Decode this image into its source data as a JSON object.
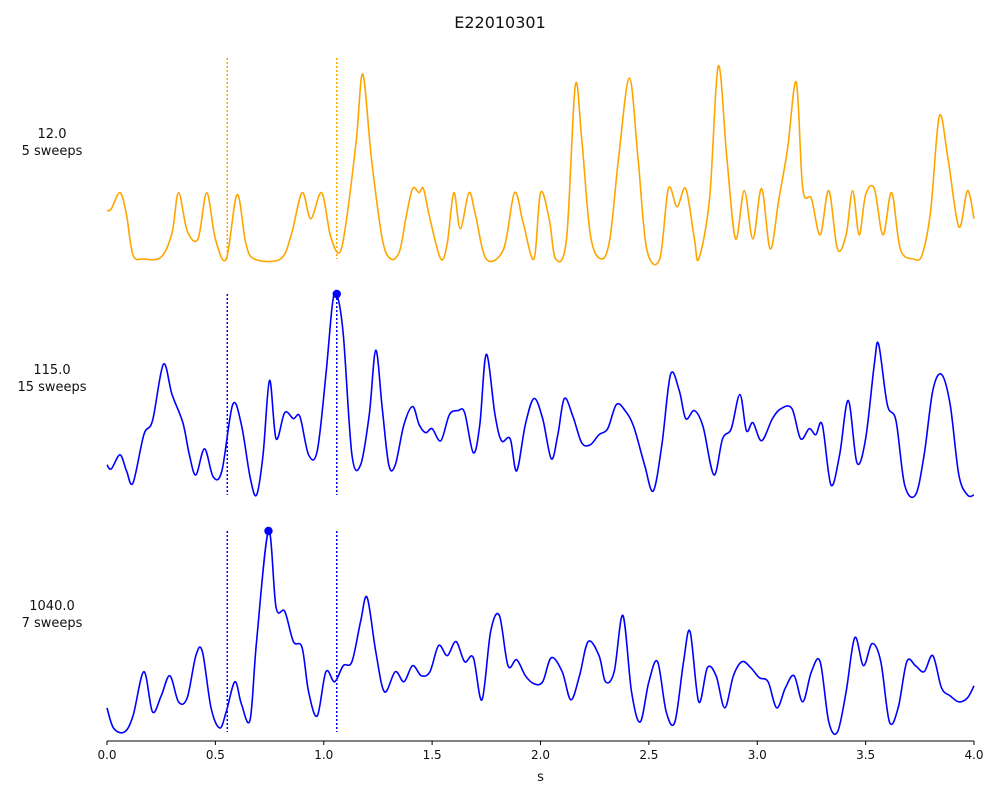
{
  "chart_data": {
    "type": "line",
    "title": "E22010301",
    "xlabel": "s",
    "xlim": [
      0.0,
      4.0
    ],
    "x_ticks": [
      "0.0",
      "0.5",
      "1.0",
      "1.5",
      "2.0",
      "2.5",
      "3.0",
      "3.5",
      "4.0"
    ],
    "markers": [
      0.555,
      1.06
    ],
    "colors": {
      "row1": "#ffa500",
      "row2": "#0000ff",
      "row3": "#0000ff"
    },
    "rows": [
      {
        "label_line1": "12.0",
        "label_line2": "5 sweeps",
        "color": "#ffa500",
        "peak": null,
        "points": [
          [
            0.0,
            0.24
          ],
          [
            0.02,
            0.25
          ],
          [
            0.06,
            0.33
          ],
          [
            0.09,
            0.22
          ],
          [
            0.12,
            0.02
          ],
          [
            0.17,
            0.0
          ],
          [
            0.25,
            0.01
          ],
          [
            0.3,
            0.13
          ],
          [
            0.33,
            0.33
          ],
          [
            0.37,
            0.14
          ],
          [
            0.42,
            0.1
          ],
          [
            0.46,
            0.33
          ],
          [
            0.5,
            0.1
          ],
          [
            0.55,
            0.0
          ],
          [
            0.6,
            0.32
          ],
          [
            0.64,
            0.08
          ],
          [
            0.68,
            0.0
          ],
          [
            0.8,
            0.0
          ],
          [
            0.85,
            0.12
          ],
          [
            0.9,
            0.33
          ],
          [
            0.94,
            0.2
          ],
          [
            0.99,
            0.33
          ],
          [
            1.03,
            0.12
          ],
          [
            1.07,
            0.03
          ],
          [
            1.1,
            0.16
          ],
          [
            1.15,
            0.59
          ],
          [
            1.18,
            0.92
          ],
          [
            1.22,
            0.5
          ],
          [
            1.27,
            0.1
          ],
          [
            1.31,
            0.0
          ],
          [
            1.35,
            0.04
          ],
          [
            1.38,
            0.21
          ],
          [
            1.41,
            0.35
          ],
          [
            1.44,
            0.33
          ],
          [
            1.46,
            0.35
          ],
          [
            1.49,
            0.2
          ],
          [
            1.54,
            0.0
          ],
          [
            1.57,
            0.08
          ],
          [
            1.6,
            0.33
          ],
          [
            1.63,
            0.15
          ],
          [
            1.67,
            0.33
          ],
          [
            1.7,
            0.22
          ],
          [
            1.75,
            0.0
          ],
          [
            1.83,
            0.05
          ],
          [
            1.88,
            0.33
          ],
          [
            1.92,
            0.18
          ],
          [
            1.97,
            0.0
          ],
          [
            2.0,
            0.33
          ],
          [
            2.04,
            0.2
          ],
          [
            2.07,
            0.0
          ],
          [
            2.12,
            0.1
          ],
          [
            2.16,
            0.86
          ],
          [
            2.19,
            0.6
          ],
          [
            2.23,
            0.12
          ],
          [
            2.28,
            0.0
          ],
          [
            2.32,
            0.1
          ],
          [
            2.36,
            0.5
          ],
          [
            2.41,
            0.9
          ],
          [
            2.45,
            0.5
          ],
          [
            2.49,
            0.05
          ],
          [
            2.55,
            0.0
          ],
          [
            2.59,
            0.35
          ],
          [
            2.63,
            0.26
          ],
          [
            2.67,
            0.35
          ],
          [
            2.71,
            0.1
          ],
          [
            2.73,
            0.0
          ],
          [
            2.78,
            0.3
          ],
          [
            2.82,
            0.96
          ],
          [
            2.86,
            0.5
          ],
          [
            2.9,
            0.1
          ],
          [
            2.94,
            0.34
          ],
          [
            2.98,
            0.1
          ],
          [
            3.02,
            0.35
          ],
          [
            3.06,
            0.05
          ],
          [
            3.1,
            0.3
          ],
          [
            3.14,
            0.55
          ],
          [
            3.18,
            0.88
          ],
          [
            3.21,
            0.35
          ],
          [
            3.25,
            0.3
          ],
          [
            3.29,
            0.12
          ],
          [
            3.33,
            0.34
          ],
          [
            3.37,
            0.05
          ],
          [
            3.41,
            0.12
          ],
          [
            3.44,
            0.34
          ],
          [
            3.47,
            0.12
          ],
          [
            3.5,
            0.32
          ],
          [
            3.54,
            0.35
          ],
          [
            3.58,
            0.12
          ],
          [
            3.62,
            0.33
          ],
          [
            3.66,
            0.05
          ],
          [
            3.72,
            0.0
          ],
          [
            3.76,
            0.02
          ],
          [
            3.8,
            0.24
          ],
          [
            3.84,
            0.71
          ],
          [
            3.88,
            0.5
          ],
          [
            3.93,
            0.16
          ],
          [
            3.97,
            0.34
          ],
          [
            4.0,
            0.2
          ]
        ]
      },
      {
        "label_line1": "115.0",
        "label_line2": "15 sweeps",
        "color": "#0000ff",
        "peak": [
          1.06,
          1.0
        ],
        "points": [
          [
            0.0,
            0.15
          ],
          [
            0.02,
            0.13
          ],
          [
            0.06,
            0.2
          ],
          [
            0.09,
            0.12
          ],
          [
            0.12,
            0.06
          ],
          [
            0.17,
            0.3
          ],
          [
            0.21,
            0.37
          ],
          [
            0.26,
            0.65
          ],
          [
            0.3,
            0.5
          ],
          [
            0.35,
            0.36
          ],
          [
            0.38,
            0.2
          ],
          [
            0.41,
            0.1
          ],
          [
            0.45,
            0.23
          ],
          [
            0.49,
            0.09
          ],
          [
            0.53,
            0.12
          ],
          [
            0.58,
            0.45
          ],
          [
            0.62,
            0.35
          ],
          [
            0.66,
            0.09
          ],
          [
            0.69,
            0.0
          ],
          [
            0.72,
            0.2
          ],
          [
            0.75,
            0.57
          ],
          [
            0.78,
            0.28
          ],
          [
            0.82,
            0.41
          ],
          [
            0.86,
            0.38
          ],
          [
            0.89,
            0.39
          ],
          [
            0.93,
            0.2
          ],
          [
            0.97,
            0.22
          ],
          [
            1.01,
            0.6
          ],
          [
            1.04,
            0.95
          ],
          [
            1.06,
            1.0
          ],
          [
            1.09,
            0.8
          ],
          [
            1.13,
            0.2
          ],
          [
            1.17,
            0.15
          ],
          [
            1.21,
            0.4
          ],
          [
            1.24,
            0.72
          ],
          [
            1.27,
            0.43
          ],
          [
            1.3,
            0.15
          ],
          [
            1.33,
            0.15
          ],
          [
            1.37,
            0.35
          ],
          [
            1.41,
            0.44
          ],
          [
            1.44,
            0.35
          ],
          [
            1.47,
            0.31
          ],
          [
            1.5,
            0.33
          ],
          [
            1.54,
            0.27
          ],
          [
            1.58,
            0.4
          ],
          [
            1.62,
            0.42
          ],
          [
            1.65,
            0.41
          ],
          [
            1.69,
            0.21
          ],
          [
            1.72,
            0.35
          ],
          [
            1.75,
            0.7
          ],
          [
            1.79,
            0.4
          ],
          [
            1.82,
            0.27
          ],
          [
            1.86,
            0.28
          ],
          [
            1.89,
            0.12
          ],
          [
            1.93,
            0.35
          ],
          [
            1.97,
            0.48
          ],
          [
            2.01,
            0.38
          ],
          [
            2.05,
            0.18
          ],
          [
            2.08,
            0.3
          ],
          [
            2.11,
            0.48
          ],
          [
            2.15,
            0.39
          ],
          [
            2.19,
            0.26
          ],
          [
            2.23,
            0.25
          ],
          [
            2.27,
            0.3
          ],
          [
            2.31,
            0.33
          ],
          [
            2.35,
            0.45
          ],
          [
            2.39,
            0.42
          ],
          [
            2.43,
            0.34
          ],
          [
            2.48,
            0.15
          ],
          [
            2.52,
            0.02
          ],
          [
            2.56,
            0.25
          ],
          [
            2.6,
            0.6
          ],
          [
            2.64,
            0.52
          ],
          [
            2.67,
            0.38
          ],
          [
            2.71,
            0.42
          ],
          [
            2.75,
            0.34
          ],
          [
            2.8,
            0.1
          ],
          [
            2.84,
            0.28
          ],
          [
            2.88,
            0.33
          ],
          [
            2.92,
            0.5
          ],
          [
            2.95,
            0.32
          ],
          [
            2.98,
            0.36
          ],
          [
            3.02,
            0.27
          ],
          [
            3.07,
            0.38
          ],
          [
            3.11,
            0.43
          ],
          [
            3.16,
            0.43
          ],
          [
            3.2,
            0.28
          ],
          [
            3.24,
            0.33
          ],
          [
            3.27,
            0.3
          ],
          [
            3.3,
            0.35
          ],
          [
            3.34,
            0.05
          ],
          [
            3.38,
            0.2
          ],
          [
            3.42,
            0.47
          ],
          [
            3.46,
            0.16
          ],
          [
            3.5,
            0.28
          ],
          [
            3.54,
            0.65
          ],
          [
            3.56,
            0.75
          ],
          [
            3.6,
            0.45
          ],
          [
            3.64,
            0.37
          ],
          [
            3.68,
            0.05
          ],
          [
            3.73,
            0.0
          ],
          [
            3.77,
            0.2
          ],
          [
            3.81,
            0.52
          ],
          [
            3.85,
            0.6
          ],
          [
            3.89,
            0.45
          ],
          [
            3.93,
            0.1
          ],
          [
            3.97,
            0.0
          ],
          [
            4.0,
            0.0
          ]
        ]
      },
      {
        "label_line1": "1040.0",
        "label_line2": "7 sweeps",
        "color": "#0000ff",
        "peak": [
          0.745,
          1.0
        ],
        "points": [
          [
            0.0,
            0.12
          ],
          [
            0.03,
            0.02
          ],
          [
            0.08,
            0.0
          ],
          [
            0.12,
            0.08
          ],
          [
            0.17,
            0.3
          ],
          [
            0.21,
            0.1
          ],
          [
            0.25,
            0.18
          ],
          [
            0.29,
            0.28
          ],
          [
            0.33,
            0.15
          ],
          [
            0.37,
            0.17
          ],
          [
            0.41,
            0.38
          ],
          [
            0.44,
            0.4
          ],
          [
            0.48,
            0.12
          ],
          [
            0.52,
            0.02
          ],
          [
            0.55,
            0.1
          ],
          [
            0.59,
            0.25
          ],
          [
            0.62,
            0.14
          ],
          [
            0.66,
            0.06
          ],
          [
            0.69,
            0.45
          ],
          [
            0.745,
            1.0
          ],
          [
            0.78,
            0.62
          ],
          [
            0.82,
            0.6
          ],
          [
            0.86,
            0.45
          ],
          [
            0.9,
            0.42
          ],
          [
            0.93,
            0.2
          ],
          [
            0.97,
            0.08
          ],
          [
            1.01,
            0.3
          ],
          [
            1.05,
            0.25
          ],
          [
            1.09,
            0.33
          ],
          [
            1.13,
            0.35
          ],
          [
            1.17,
            0.55
          ],
          [
            1.2,
            0.67
          ],
          [
            1.24,
            0.4
          ],
          [
            1.28,
            0.2
          ],
          [
            1.33,
            0.3
          ],
          [
            1.37,
            0.25
          ],
          [
            1.41,
            0.33
          ],
          [
            1.45,
            0.28
          ],
          [
            1.49,
            0.3
          ],
          [
            1.53,
            0.43
          ],
          [
            1.57,
            0.38
          ],
          [
            1.61,
            0.45
          ],
          [
            1.65,
            0.35
          ],
          [
            1.69,
            0.37
          ],
          [
            1.73,
            0.16
          ],
          [
            1.77,
            0.5
          ],
          [
            1.81,
            0.58
          ],
          [
            1.85,
            0.33
          ],
          [
            1.89,
            0.36
          ],
          [
            1.93,
            0.28
          ],
          [
            1.97,
            0.24
          ],
          [
            2.01,
            0.25
          ],
          [
            2.05,
            0.37
          ],
          [
            2.1,
            0.3
          ],
          [
            2.14,
            0.16
          ],
          [
            2.18,
            0.28
          ],
          [
            2.22,
            0.45
          ],
          [
            2.27,
            0.38
          ],
          [
            2.3,
            0.25
          ],
          [
            2.34,
            0.3
          ],
          [
            2.38,
            0.58
          ],
          [
            2.42,
            0.2
          ],
          [
            2.46,
            0.05
          ],
          [
            2.5,
            0.25
          ],
          [
            2.54,
            0.35
          ],
          [
            2.58,
            0.1
          ],
          [
            2.62,
            0.05
          ],
          [
            2.66,
            0.35
          ],
          [
            2.69,
            0.5
          ],
          [
            2.73,
            0.15
          ],
          [
            2.77,
            0.32
          ],
          [
            2.81,
            0.28
          ],
          [
            2.85,
            0.12
          ],
          [
            2.89,
            0.28
          ],
          [
            2.93,
            0.35
          ],
          [
            2.97,
            0.32
          ],
          [
            3.01,
            0.27
          ],
          [
            3.05,
            0.25
          ],
          [
            3.09,
            0.12
          ],
          [
            3.13,
            0.22
          ],
          [
            3.17,
            0.28
          ],
          [
            3.21,
            0.15
          ],
          [
            3.25,
            0.3
          ],
          [
            3.29,
            0.35
          ],
          [
            3.33,
            0.05
          ],
          [
            3.37,
            0.0
          ],
          [
            3.41,
            0.2
          ],
          [
            3.45,
            0.47
          ],
          [
            3.49,
            0.33
          ],
          [
            3.53,
            0.44
          ],
          [
            3.57,
            0.35
          ],
          [
            3.61,
            0.05
          ],
          [
            3.65,
            0.12
          ],
          [
            3.69,
            0.35
          ],
          [
            3.73,
            0.33
          ],
          [
            3.77,
            0.3
          ],
          [
            3.81,
            0.38
          ],
          [
            3.85,
            0.22
          ],
          [
            3.89,
            0.18
          ],
          [
            3.93,
            0.15
          ],
          [
            3.97,
            0.17
          ],
          [
            4.0,
            0.23
          ]
        ]
      }
    ]
  }
}
